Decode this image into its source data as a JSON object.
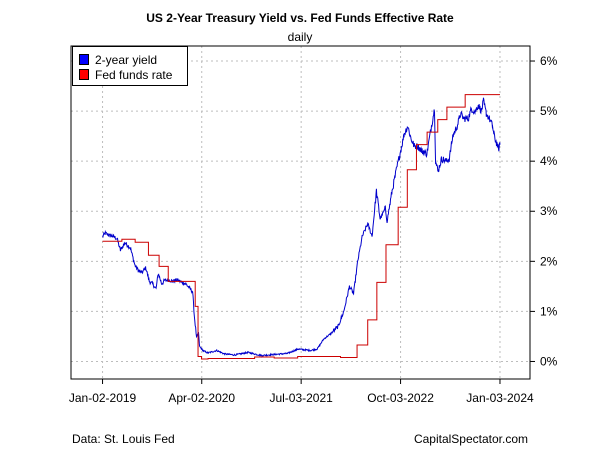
{
  "chart_data": {
    "type": "line",
    "title": "US 2-Year Treasury Yield vs. Fed Funds Effective Rate",
    "subtitle": "daily",
    "x_tick_labels": [
      "Jan-02-2019",
      "Apr-02-2020",
      "Jul-03-2021",
      "Oct-03-2022",
      "Jan-03-2024"
    ],
    "y_tick_labels": [
      "0%",
      "1%",
      "2%",
      "3%",
      "4%",
      "5%",
      "6%"
    ],
    "ylim": [
      -0.35,
      6.3
    ],
    "grid": true,
    "legend_placement": "top-left",
    "colors": {
      "yield": "#0000CC",
      "fedfunds": "#CC0000"
    },
    "source_left": "Data: St. Louis Fed",
    "source_right": "CapitalSpectator.com",
    "series": [
      {
        "name": "2-year yield",
        "points": [
          [
            "2019-01-02",
            2.5
          ],
          [
            "2019-01-15",
            2.56
          ],
          [
            "2019-02-01",
            2.52
          ],
          [
            "2019-02-20",
            2.5
          ],
          [
            "2019-03-10",
            2.45
          ],
          [
            "2019-03-25",
            2.22
          ],
          [
            "2019-04-15",
            2.37
          ],
          [
            "2019-05-10",
            2.27
          ],
          [
            "2019-05-31",
            1.92
          ],
          [
            "2019-06-15",
            1.82
          ],
          [
            "2019-07-01",
            1.77
          ],
          [
            "2019-07-20",
            1.87
          ],
          [
            "2019-08-05",
            1.6
          ],
          [
            "2019-08-20",
            1.55
          ],
          [
            "2019-09-05",
            1.45
          ],
          [
            "2019-09-15",
            1.76
          ],
          [
            "2019-10-01",
            1.55
          ],
          [
            "2019-10-15",
            1.62
          ],
          [
            "2019-11-05",
            1.63
          ],
          [
            "2019-11-20",
            1.6
          ],
          [
            "2019-12-10",
            1.63
          ],
          [
            "2020-01-02",
            1.58
          ],
          [
            "2020-01-20",
            1.55
          ],
          [
            "2020-02-10",
            1.44
          ],
          [
            "2020-02-20",
            1.4
          ],
          [
            "2020-02-28",
            0.91
          ],
          [
            "2020-03-09",
            0.48
          ],
          [
            "2020-03-18",
            0.58
          ],
          [
            "2020-03-23",
            0.3
          ],
          [
            "2020-04-10",
            0.21
          ],
          [
            "2020-05-01",
            0.17
          ],
          [
            "2020-06-10",
            0.22
          ],
          [
            "2020-07-15",
            0.15
          ],
          [
            "2020-09-01",
            0.13
          ],
          [
            "2020-11-01",
            0.18
          ],
          [
            "2021-01-01",
            0.12
          ],
          [
            "2021-03-01",
            0.14
          ],
          [
            "2021-05-01",
            0.16
          ],
          [
            "2021-06-20",
            0.25
          ],
          [
            "2021-07-03",
            0.24
          ],
          [
            "2021-08-15",
            0.22
          ],
          [
            "2021-09-15",
            0.25
          ],
          [
            "2021-10-15",
            0.45
          ],
          [
            "2021-11-15",
            0.55
          ],
          [
            "2021-12-20",
            0.7
          ],
          [
            "2022-01-15",
            1.0
          ],
          [
            "2022-02-10",
            1.5
          ],
          [
            "2022-03-01",
            1.35
          ],
          [
            "2022-03-20",
            2.0
          ],
          [
            "2022-04-10",
            2.5
          ],
          [
            "2022-05-05",
            2.75
          ],
          [
            "2022-05-25",
            2.5
          ],
          [
            "2022-06-14",
            3.4
          ],
          [
            "2022-07-01",
            2.85
          ],
          [
            "2022-07-25",
            3.05
          ],
          [
            "2022-08-02",
            2.8
          ],
          [
            "2022-08-25",
            3.4
          ],
          [
            "2022-09-15",
            3.85
          ],
          [
            "2022-10-03",
            4.2
          ],
          [
            "2022-10-20",
            4.55
          ],
          [
            "2022-11-05",
            4.7
          ],
          [
            "2022-11-20",
            4.45
          ],
          [
            "2022-12-05",
            4.3
          ],
          [
            "2022-12-20",
            4.3
          ],
          [
            "2023-01-10",
            4.2
          ],
          [
            "2023-02-01",
            4.15
          ],
          [
            "2023-02-20",
            4.65
          ],
          [
            "2023-03-08",
            5.05
          ],
          [
            "2023-03-13",
            4.0
          ],
          [
            "2023-03-24",
            3.8
          ],
          [
            "2023-04-10",
            4.05
          ],
          [
            "2023-05-01",
            4.0
          ],
          [
            "2023-05-15",
            4.05
          ],
          [
            "2023-05-31",
            4.5
          ],
          [
            "2023-06-20",
            4.7
          ],
          [
            "2023-07-06",
            4.95
          ],
          [
            "2023-07-20",
            4.85
          ],
          [
            "2023-08-10",
            4.85
          ],
          [
            "2023-08-25",
            5.05
          ],
          [
            "2023-09-10",
            4.98
          ],
          [
            "2023-09-25",
            5.12
          ],
          [
            "2023-10-10",
            5.0
          ],
          [
            "2023-10-19",
            5.2
          ],
          [
            "2023-11-01",
            4.95
          ],
          [
            "2023-11-15",
            4.85
          ],
          [
            "2023-11-30",
            4.7
          ],
          [
            "2023-12-05",
            4.55
          ],
          [
            "2023-12-14",
            4.4
          ],
          [
            "2023-12-20",
            4.35
          ],
          [
            "2023-12-27",
            4.23
          ],
          [
            "2024-01-03",
            4.33
          ]
        ]
      },
      {
        "name": "Fed funds rate",
        "points": [
          [
            "2019-01-02",
            2.4
          ],
          [
            "2019-04-01",
            2.44
          ],
          [
            "2019-06-01",
            2.38
          ],
          [
            "2019-08-01",
            2.12
          ],
          [
            "2019-09-19",
            1.9
          ],
          [
            "2019-10-31",
            1.6
          ],
          [
            "2020-03-03",
            1.1
          ],
          [
            "2020-03-16",
            0.1
          ],
          [
            "2020-04-01",
            0.05
          ],
          [
            "2020-05-01",
            0.06
          ],
          [
            "2020-12-01",
            0.09
          ],
          [
            "2021-03-01",
            0.07
          ],
          [
            "2021-06-17",
            0.1
          ],
          [
            "2021-12-31",
            0.08
          ],
          [
            "2022-03-17",
            0.33
          ],
          [
            "2022-05-05",
            0.83
          ],
          [
            "2022-06-16",
            1.58
          ],
          [
            "2022-07-28",
            2.33
          ],
          [
            "2022-09-22",
            3.08
          ],
          [
            "2022-11-03",
            3.83
          ],
          [
            "2022-12-15",
            4.33
          ],
          [
            "2023-02-02",
            4.58
          ],
          [
            "2023-03-23",
            4.83
          ],
          [
            "2023-05-04",
            5.08
          ],
          [
            "2023-07-27",
            5.33
          ],
          [
            "2024-01-03",
            5.33
          ]
        ]
      }
    ]
  }
}
